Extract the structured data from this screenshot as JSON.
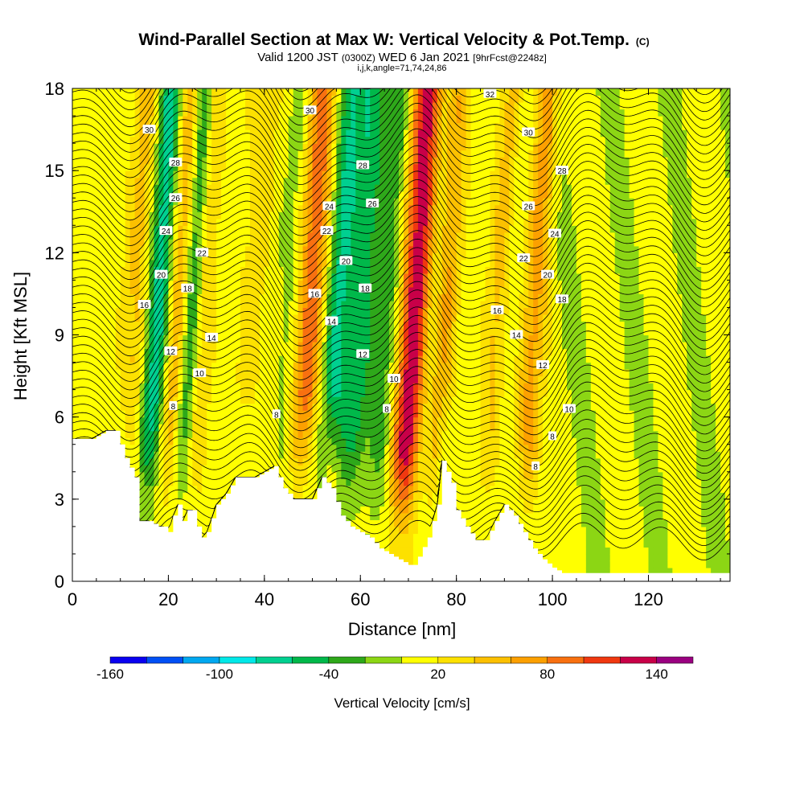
{
  "chart_data": {
    "type": "heatmap",
    "title": "Wind-Parallel Section at Max W: Vertical Velocity & Pot.Temp.",
    "title_mark": "(C)",
    "subtitle": {
      "prefix": "Valid 1200 JST",
      "zulu": "(0300Z)",
      "date": "WED 6 Jan 2021",
      "forecast": "[9hrFcst@2248z]"
    },
    "indices": "i,j,k,angle=71,74,24,86",
    "xlabel": "Distance [nm]",
    "ylabel": "Height [Kft MSL]",
    "xlim": [
      0,
      137
    ],
    "ylim": [
      0,
      18
    ],
    "xticks": [
      "0",
      "20",
      "40",
      "60",
      "80",
      "100",
      "120"
    ],
    "yticks": [
      "0",
      "3",
      "6",
      "9",
      "12",
      "15",
      "18"
    ],
    "colorbar": {
      "label": "Vertical Velocity [cm/s]",
      "ticks": [
        "-160",
        "-100",
        "-40",
        "20",
        "80",
        "140"
      ],
      "levels": [
        -160,
        -140,
        -120,
        -100,
        -80,
        -60,
        -40,
        -20,
        0,
        20,
        40,
        60,
        80,
        100,
        120,
        140,
        160
      ],
      "colors": [
        "#0a00f0",
        "#0050f5",
        "#00a8f0",
        "#00e8e8",
        "#00d090",
        "#00b84a",
        "#2ea81a",
        "#8cd614",
        "#ffff00",
        "#fde100",
        "#fcc000",
        "#fca000",
        "#f87010",
        "#f03810",
        "#c80048",
        "#9a0080"
      ]
    },
    "updraft_columns": [
      {
        "x": 12,
        "w": 40,
        "width": 2.2
      },
      {
        "x": 20.5,
        "w": 55,
        "width": 1.8
      },
      {
        "x": 26,
        "w": 35,
        "width": 1.6
      },
      {
        "x": 36,
        "w": 20,
        "width": 2.5
      },
      {
        "x": 48.5,
        "w": 120,
        "width": 2.8
      },
      {
        "x": 56,
        "w": 40,
        "width": 1.5
      },
      {
        "x": 70,
        "w": 130,
        "width": 2.8
      },
      {
        "x": 76.5,
        "w": 50,
        "width": 1.6
      },
      {
        "x": 88,
        "w": 45,
        "width": 2.2
      },
      {
        "x": 95,
        "w": 60,
        "width": 1.8
      }
    ],
    "downdraft_columns": [
      {
        "x": 16.5,
        "w": -90,
        "width": 1.8
      },
      {
        "x": 23.5,
        "w": -60,
        "width": 1.4
      },
      {
        "x": 44.5,
        "w": -40,
        "width": 2.0
      },
      {
        "x": 55,
        "w": -110,
        "width": 4.0
      },
      {
        "x": 65,
        "w": -50,
        "width": 2.0
      },
      {
        "x": 73.5,
        "w": -40,
        "width": 1.5
      },
      {
        "x": 90,
        "w": -30,
        "width": 1.5
      }
    ],
    "terrain": {
      "x": [
        0,
        4,
        7,
        9,
        11,
        13,
        14,
        16,
        18,
        19,
        20,
        21,
        22,
        23,
        24,
        25,
        26,
        27,
        28,
        30,
        32,
        34,
        36,
        38,
        40,
        42,
        44,
        46,
        48,
        50,
        52,
        54,
        56,
        58,
        60,
        62,
        64,
        66,
        68,
        70,
        71,
        72,
        74,
        76,
        77,
        78,
        79,
        80,
        82,
        84,
        86,
        88,
        90,
        92,
        94,
        96,
        98,
        100,
        102,
        104,
        108,
        112,
        116,
        120,
        124,
        128,
        132,
        137
      ],
      "h": [
        5.2,
        5.2,
        5.5,
        5.5,
        4.5,
        3.8,
        2.2,
        2.2,
        2.0,
        2.0,
        1.8,
        2.4,
        2.8,
        2.2,
        2.6,
        2.6,
        2.0,
        1.6,
        1.8,
        2.8,
        3.2,
        3.8,
        3.8,
        3.8,
        4.0,
        4.2,
        3.4,
        3.0,
        3.0,
        3.0,
        3.8,
        3.4,
        2.4,
        2.0,
        1.8,
        1.6,
        1.2,
        1.0,
        0.8,
        0.6,
        0.6,
        0.9,
        1.6,
        2.8,
        4.4,
        4.0,
        3.6,
        2.6,
        2.0,
        1.5,
        1.5,
        2.2,
        2.8,
        2.4,
        1.8,
        1.2,
        0.8,
        0.5,
        0.3,
        0.3,
        0.3,
        0.3,
        0.3,
        0.3,
        0.3,
        0.3,
        0.3,
        0.3
      ]
    },
    "contour_levels": [
      6,
      8,
      10,
      12,
      14,
      16,
      18,
      20,
      22,
      24,
      26,
      28,
      30,
      32
    ],
    "contour_labels": [
      {
        "text": "30",
        "x": 16,
        "y": 16.5
      },
      {
        "text": "28",
        "x": 21.5,
        "y": 15.3
      },
      {
        "text": "26",
        "x": 21.5,
        "y": 14.0
      },
      {
        "text": "24",
        "x": 19.5,
        "y": 12.8
      },
      {
        "text": "22",
        "x": 27,
        "y": 12.0
      },
      {
        "text": "20",
        "x": 18.5,
        "y": 11.2
      },
      {
        "text": "18",
        "x": 24,
        "y": 10.7
      },
      {
        "text": "16",
        "x": 15,
        "y": 10.1
      },
      {
        "text": "14",
        "x": 29,
        "y": 8.9
      },
      {
        "text": "12",
        "x": 20.5,
        "y": 8.4
      },
      {
        "text": "10",
        "x": 26.5,
        "y": 7.6
      },
      {
        "text": "8",
        "x": 21,
        "y": 6.4
      },
      {
        "text": "8",
        "x": 42.5,
        "y": 6.1
      },
      {
        "text": "30",
        "x": 49.5,
        "y": 17.2
      },
      {
        "text": "28",
        "x": 60.5,
        "y": 15.2
      },
      {
        "text": "26",
        "x": 62.5,
        "y": 13.8
      },
      {
        "text": "24",
        "x": 53.5,
        "y": 13.7
      },
      {
        "text": "22",
        "x": 53,
        "y": 12.8
      },
      {
        "text": "20",
        "x": 57,
        "y": 11.7
      },
      {
        "text": "18",
        "x": 61,
        "y": 10.7
      },
      {
        "text": "16",
        "x": 50.5,
        "y": 10.5
      },
      {
        "text": "14",
        "x": 54,
        "y": 9.5
      },
      {
        "text": "12",
        "x": 60.5,
        "y": 8.3
      },
      {
        "text": "10",
        "x": 67,
        "y": 7.4
      },
      {
        "text": "8",
        "x": 65.5,
        "y": 6.3
      },
      {
        "text": "32",
        "x": 87,
        "y": 17.8
      },
      {
        "text": "30",
        "x": 95,
        "y": 16.4
      },
      {
        "text": "28",
        "x": 102,
        "y": 15.0
      },
      {
        "text": "26",
        "x": 95,
        "y": 13.7
      },
      {
        "text": "24",
        "x": 100.5,
        "y": 12.7
      },
      {
        "text": "22",
        "x": 94,
        "y": 11.8
      },
      {
        "text": "20",
        "x": 99,
        "y": 11.2
      },
      {
        "text": "18",
        "x": 102,
        "y": 10.3
      },
      {
        "text": "16",
        "x": 88.5,
        "y": 9.9
      },
      {
        "text": "14",
        "x": 92.5,
        "y": 9.0
      },
      {
        "text": "12",
        "x": 98,
        "y": 7.9
      },
      {
        "text": "10",
        "x": 103.5,
        "y": 6.3
      },
      {
        "text": "8",
        "x": 100,
        "y": 5.3
      },
      {
        "text": "8",
        "x": 96.5,
        "y": 4.2
      }
    ]
  }
}
